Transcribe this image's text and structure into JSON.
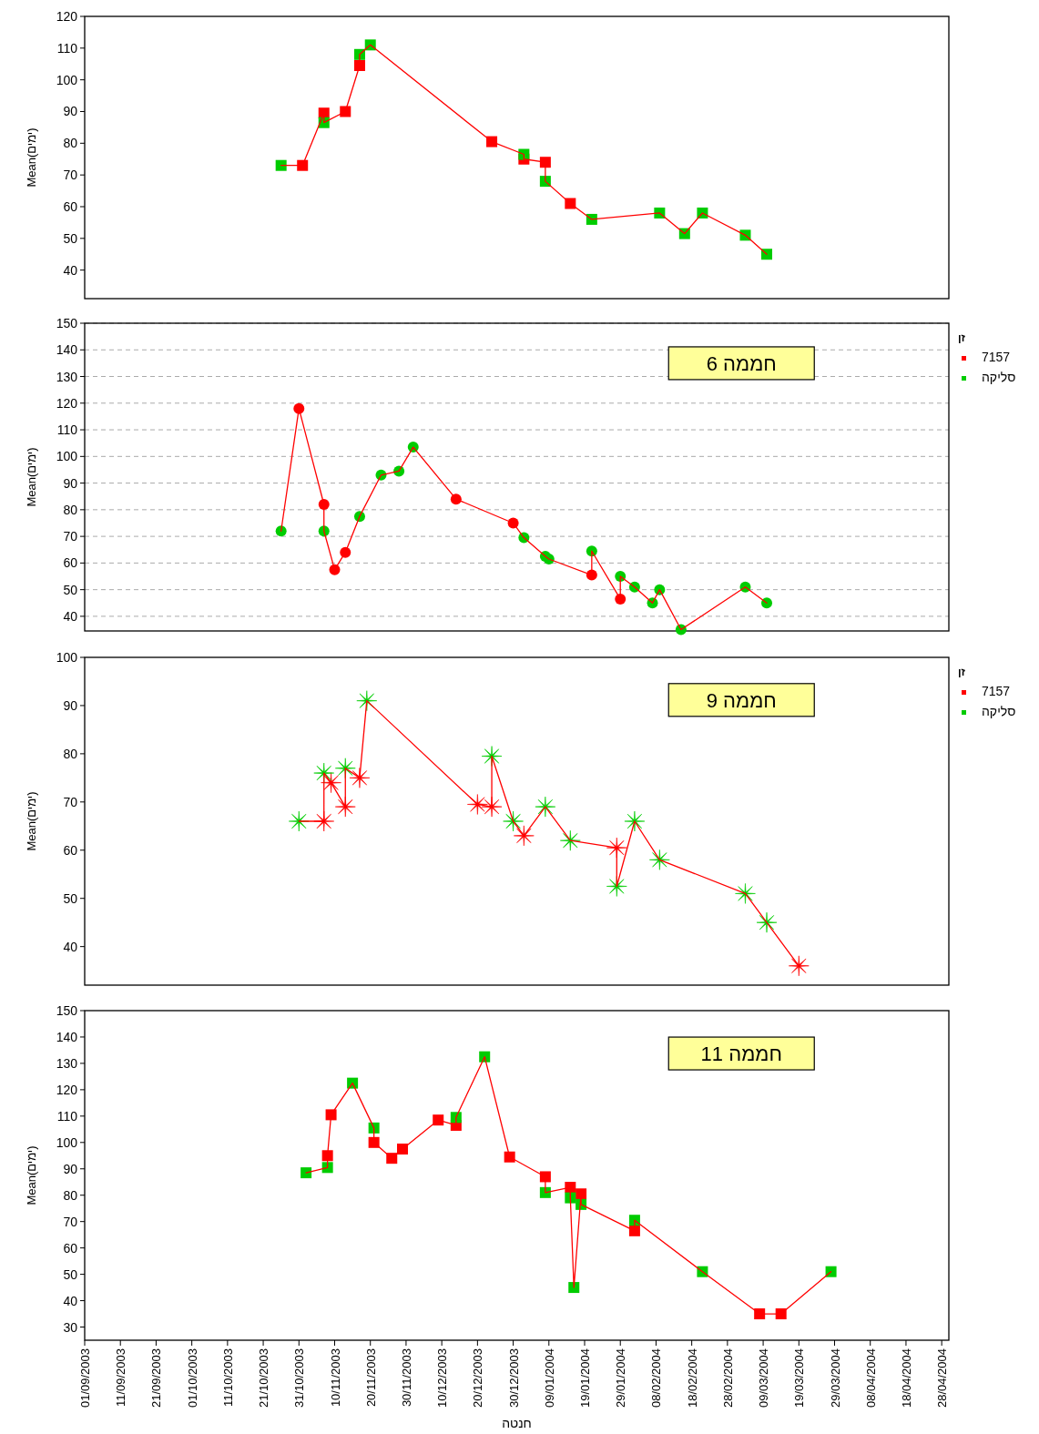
{
  "chart_data": [
    {
      "type": "line",
      "ylabel": "Mean(ימים)",
      "xlim": [
        "2003-09-01",
        "2004-04-30"
      ],
      "ylim": [
        31,
        120
      ],
      "yticks": [
        40,
        50,
        60,
        70,
        80,
        90,
        100,
        110,
        120
      ],
      "tick_labels": "y",
      "series": [
        {
          "type": "line",
          "marker": "none",
          "color": "#ff0000",
          "x": [
            "2003-10-26",
            "2003-11-01",
            "2003-11-07",
            "2003-11-07",
            "2003-11-13",
            "2003-11-17",
            "2003-11-17",
            "2003-11-20",
            "2003-12-24",
            "2004-01-02",
            "2004-01-02",
            "2004-01-08",
            "2004-01-08",
            "2004-01-15",
            "2004-01-21",
            "2004-02-09",
            "2004-02-16",
            "2004-02-21",
            "2004-03-04",
            "2004-03-10"
          ],
          "values": [
            73,
            73,
            89.5,
            86.5,
            90,
            104.5,
            108,
            111,
            80.5,
            76.5,
            75,
            74,
            68,
            61,
            56,
            58,
            51.5,
            58,
            51,
            45
          ]
        },
        {
          "type": "scatter",
          "marker": "square",
          "color": "#ff0000",
          "x": [
            "2003-11-01",
            "2003-11-07",
            "2003-11-13",
            "2003-11-17",
            "2003-12-24",
            "2004-01-02",
            "2004-01-08",
            "2004-01-15"
          ],
          "values": [
            73,
            89.5,
            90,
            104.5,
            80.5,
            75,
            74,
            61
          ]
        },
        {
          "type": "scatter",
          "marker": "square",
          "color": "#00cc00",
          "x": [
            "2003-10-26",
            "2003-11-07",
            "2003-11-17",
            "2003-11-20",
            "2004-01-02",
            "2004-01-08",
            "2004-01-21",
            "2004-02-09",
            "2004-02-16",
            "2004-02-21",
            "2004-03-04",
            "2004-03-10"
          ],
          "values": [
            73,
            86.5,
            108,
            111,
            76.5,
            68,
            56,
            58,
            51.5,
            58,
            51,
            45
          ]
        }
      ]
    },
    {
      "type": "line",
      "ylabel": "Mean(ימים)",
      "annotations": [
        "חממה 6"
      ],
      "legend_title": "זן",
      "legend": "right",
      "grid": "y",
      "xlim": [
        "2003-09-01",
        "2004-04-30"
      ],
      "ylim": [
        34.5,
        150
      ],
      "yticks": [
        40,
        50,
        60,
        70,
        80,
        90,
        100,
        110,
        120,
        130,
        140,
        150
      ],
      "tick_labels": "y",
      "series": [
        {
          "type": "line",
          "marker": "none",
          "color": "#ff0000",
          "x": [
            "2003-10-26",
            "2003-10-31",
            "2003-11-07",
            "2003-11-07",
            "2003-11-10",
            "2003-11-13",
            "2003-11-17",
            "2003-11-23",
            "2003-11-28",
            "2003-12-02",
            "2003-12-14",
            "2003-12-30",
            "2004-01-02",
            "2004-01-08",
            "2004-01-09",
            "2004-01-21",
            "2004-01-21",
            "2004-01-29",
            "2004-01-29",
            "2004-02-02",
            "2004-02-07",
            "2004-02-09",
            "2004-02-15",
            "2004-03-04",
            "2004-03-10"
          ],
          "values": [
            72,
            118,
            82,
            72,
            57.5,
            64,
            77.5,
            93,
            94.5,
            103.5,
            84,
            75,
            69.5,
            62.5,
            61.5,
            55.5,
            64.5,
            46.5,
            55,
            51,
            45,
            50,
            35,
            51,
            45
          ]
        },
        {
          "type": "scatter",
          "marker": "circle",
          "name": "7157",
          "color": "#ff0000",
          "x": [
            "2003-10-31",
            "2003-11-07",
            "2003-11-10",
            "2003-11-13",
            "2003-12-14",
            "2003-12-30",
            "2004-01-21",
            "2004-01-29"
          ],
          "values": [
            118,
            82,
            57.5,
            64,
            84,
            75,
            55.5,
            46.5
          ]
        },
        {
          "type": "scatter",
          "marker": "circle",
          "name": "סליקה",
          "color": "#00cc00",
          "x": [
            "2003-10-26",
            "2003-11-07",
            "2003-11-17",
            "2003-11-23",
            "2003-11-28",
            "2003-12-02",
            "2004-01-02",
            "2004-01-08",
            "2004-01-09",
            "2004-01-21",
            "2004-01-29",
            "2004-02-02",
            "2004-02-07",
            "2004-02-09",
            "2004-02-15",
            "2004-03-04",
            "2004-03-10"
          ],
          "values": [
            72,
            72,
            77.5,
            93,
            94.5,
            103.5,
            69.5,
            62.5,
            61.5,
            64.5,
            55,
            51,
            45,
            50,
            35,
            51,
            45
          ]
        }
      ]
    },
    {
      "type": "line",
      "ylabel": "Mean(ימים)",
      "annotations": [
        "חממה 9"
      ],
      "legend_title": "זן",
      "legend": "right",
      "xlim": [
        "2003-09-01",
        "2004-04-30"
      ],
      "ylim": [
        32,
        100
      ],
      "yticks": [
        40,
        50,
        60,
        70,
        80,
        90,
        100
      ],
      "tick_labels": "y",
      "series": [
        {
          "type": "line",
          "marker": "none",
          "color": "#ff0000",
          "x": [
            "2003-10-31",
            "2003-11-07",
            "2003-11-07",
            "2003-11-09",
            "2003-11-13",
            "2003-11-13",
            "2003-11-17",
            "2003-11-19",
            "2003-12-20",
            "2003-12-24",
            "2003-12-24",
            "2003-12-30",
            "2004-01-02",
            "2004-01-08",
            "2004-01-15",
            "2004-01-28",
            "2004-01-28",
            "2004-02-02",
            "2004-02-09",
            "2004-03-04",
            "2004-03-10",
            "2004-03-19"
          ],
          "values": [
            66,
            66,
            76,
            74,
            69,
            77,
            75,
            91,
            69.5,
            69,
            79.5,
            66,
            63,
            69,
            62,
            60.5,
            52.5,
            66,
            58,
            51,
            45,
            36
          ]
        },
        {
          "type": "scatter",
          "marker": "star",
          "name": "7157",
          "color": "#ff0000",
          "x": [
            "2003-11-07",
            "2003-11-09",
            "2003-11-13",
            "2003-11-17",
            "2003-12-20",
            "2003-12-24",
            "2004-01-02",
            "2004-01-28",
            "2004-03-19"
          ],
          "values": [
            66,
            74,
            69,
            75,
            69.5,
            69,
            63,
            60.5,
            36
          ]
        },
        {
          "type": "scatter",
          "marker": "star",
          "name": "סליקה",
          "color": "#00cc00",
          "x": [
            "2003-10-31",
            "2003-11-07",
            "2003-11-13",
            "2003-11-19",
            "2003-12-24",
            "2003-12-30",
            "2004-01-08",
            "2004-01-15",
            "2004-01-28",
            "2004-02-02",
            "2004-02-09",
            "2004-03-04",
            "2004-03-10"
          ],
          "values": [
            66,
            76,
            77,
            91,
            79.5,
            66,
            69,
            62,
            52.5,
            66,
            58,
            51,
            45
          ]
        }
      ]
    },
    {
      "type": "line",
      "ylabel": "Mean(ימים)",
      "xlabel": "חנטה",
      "annotations": [
        "חממה 11"
      ],
      "xlim": [
        "2003-09-01",
        "2004-04-30"
      ],
      "ylim": [
        25,
        150
      ],
      "yticks": [
        30,
        40,
        50,
        60,
        70,
        80,
        90,
        100,
        110,
        120,
        130,
        140,
        150
      ],
      "xticks": [
        {
          "value": "2003-09-01",
          "label": "01/09/2003"
        },
        {
          "value": "2003-09-11",
          "label": "11/09/2003"
        },
        {
          "value": "2003-09-21",
          "label": "21/09/2003"
        },
        {
          "value": "2003-10-01",
          "label": "01/10/2003"
        },
        {
          "value": "2003-10-11",
          "label": "11/10/2003"
        },
        {
          "value": "2003-10-21",
          "label": "21/10/2003"
        },
        {
          "value": "2003-10-31",
          "label": "31/10/2003"
        },
        {
          "value": "2003-11-10",
          "label": "10/11/2003"
        },
        {
          "value": "2003-11-20",
          "label": "20/11/2003"
        },
        {
          "value": "2003-11-30",
          "label": "30/11/2003"
        },
        {
          "value": "2003-12-10",
          "label": "10/12/2003"
        },
        {
          "value": "2003-12-20",
          "label": "20/12/2003"
        },
        {
          "value": "2003-12-30",
          "label": "30/12/2003"
        },
        {
          "value": "2004-01-09",
          "label": "09/01/2004"
        },
        {
          "value": "2004-01-19",
          "label": "19/01/2004"
        },
        {
          "value": "2004-01-29",
          "label": "29/01/2004"
        },
        {
          "value": "2004-02-08",
          "label": "08/02/2004"
        },
        {
          "value": "2004-02-18",
          "label": "18/02/2004"
        },
        {
          "value": "2004-02-28",
          "label": "28/02/2004"
        },
        {
          "value": "2004-03-09",
          "label": "09/03/2004"
        },
        {
          "value": "2004-03-19",
          "label": "19/03/2004"
        },
        {
          "value": "2004-03-29",
          "label": "29/03/2004"
        },
        {
          "value": "2004-04-08",
          "label": "08/04/2004"
        },
        {
          "value": "2004-04-18",
          "label": "18/04/2004"
        },
        {
          "value": "2004-04-28",
          "label": "28/04/2004"
        }
      ],
      "series": [
        {
          "type": "line",
          "marker": "none",
          "color": "#ff0000",
          "x": [
            "2003-11-02",
            "2003-11-08",
            "2003-11-08",
            "2003-11-09",
            "2003-11-15",
            "2003-11-21",
            "2003-11-21",
            "2003-11-26",
            "2003-11-29",
            "2003-12-09",
            "2003-12-14",
            "2003-12-14",
            "2003-12-22",
            "2003-12-29",
            "2004-01-08",
            "2004-01-08",
            "2004-01-15",
            "2004-01-15",
            "2004-01-16",
            "2004-01-18",
            "2004-01-18",
            "2004-02-02",
            "2004-02-02",
            "2004-02-21",
            "2004-03-08",
            "2004-03-14",
            "2004-03-28"
          ],
          "values": [
            88.5,
            90.5,
            95,
            110.5,
            122.5,
            105.5,
            100,
            94,
            97.5,
            108.5,
            106.5,
            109.5,
            132.5,
            94.5,
            87,
            81,
            83,
            79,
            45,
            80.5,
            76.5,
            66.5,
            70.5,
            51,
            35,
            35,
            51
          ]
        },
        {
          "type": "scatter",
          "marker": "square",
          "color": "#ff0000",
          "x": [
            "2003-11-08",
            "2003-11-09",
            "2003-11-21",
            "2003-11-26",
            "2003-11-29",
            "2003-12-09",
            "2003-12-14",
            "2003-12-29",
            "2004-01-08",
            "2004-01-15",
            "2004-01-18",
            "2004-02-02",
            "2004-03-08",
            "2004-03-14"
          ],
          "values": [
            95,
            110.5,
            100,
            94,
            97.5,
            108.5,
            106.5,
            94.5,
            87,
            83,
            80.5,
            66.5,
            35,
            35
          ]
        },
        {
          "type": "scatter",
          "marker": "square",
          "color": "#00cc00",
          "x": [
            "2003-11-02",
            "2003-11-08",
            "2003-11-15",
            "2003-11-21",
            "2003-12-14",
            "2003-12-22",
            "2004-01-08",
            "2004-01-15",
            "2004-01-16",
            "2004-01-18",
            "2004-02-02",
            "2004-02-21",
            "2004-03-28"
          ],
          "values": [
            88.5,
            90.5,
            122.5,
            105.5,
            109.5,
            132.5,
            81,
            79,
            45,
            76.5,
            70.5,
            51,
            51
          ]
        }
      ]
    }
  ]
}
